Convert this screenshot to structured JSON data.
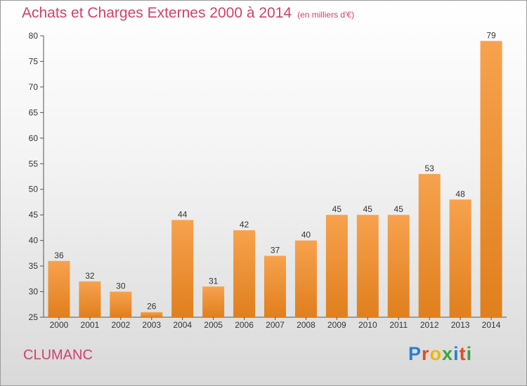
{
  "header": {
    "title": "Achats et Charges Externes 2000 à 2014",
    "unit": "(en milliers d'€)"
  },
  "footer": {
    "place": "CLUMANC",
    "brand": "Proxiti"
  },
  "colors": {
    "bar_top": "#f7a24e",
    "bar_bottom": "#e07f1d",
    "title": "#d2406b"
  },
  "chart_data": {
    "type": "bar",
    "title": "Achats et Charges Externes 2000 à 2014",
    "subtitle": "(en milliers d'€)",
    "categories": [
      "2000",
      "2001",
      "2002",
      "2003",
      "2004",
      "2005",
      "2006",
      "2007",
      "2008",
      "2009",
      "2010",
      "2011",
      "2012",
      "2013",
      "2014"
    ],
    "values": [
      36,
      32,
      30,
      26,
      44,
      31,
      42,
      37,
      40,
      45,
      45,
      45,
      53,
      48,
      79
    ],
    "ylim": [
      25,
      80
    ],
    "yticks": [
      25,
      30,
      35,
      40,
      45,
      50,
      55,
      60,
      65,
      70,
      75,
      80
    ],
    "grid": false,
    "xlabel": "",
    "ylabel": ""
  }
}
